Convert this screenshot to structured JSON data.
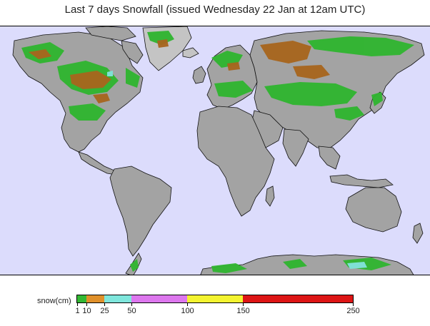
{
  "title": "Last 7 days Snowfall (issued Wednesday 22 Jan at 12am UTC)",
  "colors": {
    "ocean": "#dcdcfc",
    "land": "#a3a3a3",
    "land_shade": "#8a8a8a",
    "land_light": "#c4c4c4",
    "snow_light": "#2fb52f",
    "snow_mid": "#a8651d",
    "snow_cyan": "#7fe0d4",
    "coast": "#111111"
  },
  "legend": {
    "label": "snow(cm)",
    "bins": [
      {
        "from": 1,
        "to": 10,
        "color": "#33b833"
      },
      {
        "from": 10,
        "to": 25,
        "color": "#e0902a"
      },
      {
        "from": 25,
        "to": 50,
        "color": "#7fe6dc"
      },
      {
        "from": 50,
        "to": 100,
        "color": "#dd77ee"
      },
      {
        "from": 100,
        "to": 150,
        "color": "#f4f430"
      },
      {
        "from": 150,
        "to": 250,
        "color": "#dd1515"
      }
    ],
    "ticks": [
      "1",
      "10",
      "25",
      "50",
      "100",
      "150",
      "250"
    ]
  }
}
